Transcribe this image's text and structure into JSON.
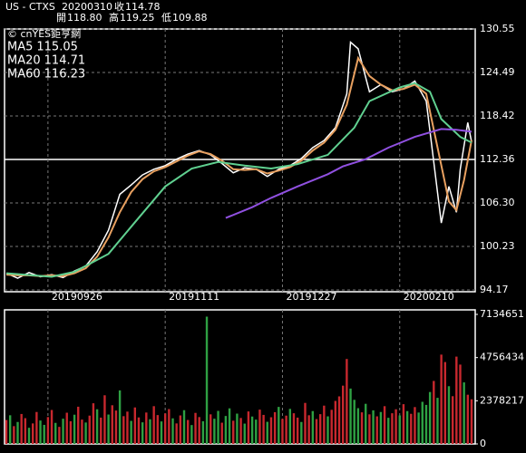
{
  "header": {
    "symbol": "US - CTXS",
    "date": "20200310",
    "close_label": "收",
    "close": "114.78",
    "open_label": "開",
    "open": "118.80",
    "high_label": "高",
    "high": "119.25",
    "low_label": "低",
    "low": "109.88",
    "source": "© cnYES鉅亨網"
  },
  "chart_data": [
    {
      "type": "line",
      "xlim": [
        0,
        123
      ],
      "xticks": [
        {
          "value": 11,
          "label": "20190926"
        },
        {
          "value": 42,
          "label": "20191111"
        },
        {
          "value": 73,
          "label": "20191227"
        },
        {
          "value": 104,
          "label": "20200210"
        }
      ],
      "ylim": [
        94.17,
        130.55
      ],
      "yticks": [
        94.17,
        {
          "value": 100.23,
          "label": "100.23"
        },
        {
          "value": 106.3,
          "label": "106.30"
        },
        112.36,
        118.42,
        124.49,
        130.55
      ],
      "highlight_tick": 3,
      "grid": true,
      "series": [
        {
          "color": "#ffffff",
          "x": [
            0,
            3,
            6,
            9,
            12,
            15,
            18,
            21,
            24,
            27,
            30,
            33,
            36,
            39,
            42,
            45,
            48,
            51,
            54,
            57,
            60,
            63,
            66,
            69,
            72,
            75,
            78,
            81,
            84,
            87,
            90,
            91,
            93,
            96,
            99,
            102,
            105,
            108,
            111,
            113,
            115,
            117,
            119,
            120,
            122,
            123
          ],
          "values": [
            96.5,
            95.8,
            96.6,
            96.0,
            96.3,
            95.9,
            96.8,
            97.5,
            99.5,
            102.5,
            107.5,
            108.8,
            110.2,
            111.0,
            111.5,
            112.4,
            113.1,
            113.6,
            113.0,
            111.8,
            110.5,
            111.2,
            111.0,
            110.0,
            111.0,
            111.5,
            112.5,
            114.0,
            115.0,
            116.8,
            121.5,
            128.7,
            127.8,
            121.8,
            122.8,
            121.8,
            122.2,
            123.3,
            120.5,
            112.0,
            103.5,
            108.6,
            105.0,
            111.0,
            117.5,
            114.78
          ]
        },
        {
          "name": "MA5",
          "color": "#e8a060",
          "x": [
            0,
            3,
            6,
            9,
            12,
            15,
            18,
            21,
            24,
            27,
            30,
            33,
            36,
            39,
            42,
            45,
            48,
            51,
            54,
            57,
            60,
            63,
            66,
            69,
            72,
            75,
            78,
            81,
            84,
            87,
            90,
            93,
            96,
            99,
            102,
            105,
            108,
            111,
            114,
            117,
            119,
            121,
            123
          ],
          "values": [
            96.3,
            96.2,
            96.2,
            96.1,
            96.2,
            96.1,
            96.5,
            97.2,
            98.8,
            101.5,
            105.0,
            107.8,
            109.6,
            110.7,
            111.3,
            112.1,
            112.9,
            113.5,
            113.1,
            112.2,
            111.0,
            110.9,
            111.0,
            110.4,
            110.8,
            111.3,
            112.2,
            113.6,
            114.7,
            116.5,
            120.0,
            126.5,
            124.0,
            122.8,
            122.0,
            122.2,
            122.8,
            121.5,
            114.0,
            106.5,
            105.3,
            109.5,
            115.05
          ]
        },
        {
          "name": "MA20",
          "color": "#60d090",
          "x": [
            0,
            12,
            18,
            27,
            34,
            42,
            49,
            56,
            63,
            70,
            77,
            85,
            92,
            96,
            104,
            108,
            112,
            115,
            120,
            123
          ],
          "values": [
            96.5,
            96.0,
            96.7,
            99.2,
            103.6,
            108.6,
            111.1,
            112.0,
            111.5,
            111.1,
            111.7,
            113.0,
            116.8,
            120.5,
            122.4,
            123.0,
            121.8,
            118.0,
            115.5,
            114.71
          ]
        },
        {
          "name": "MA60",
          "color": "#9050e0",
          "x": [
            58,
            65,
            70,
            77,
            85,
            89,
            95,
            101,
            108,
            115,
            119,
            123
          ],
          "values": [
            104.2,
            105.7,
            107.0,
            108.6,
            110.3,
            111.4,
            112.4,
            114.0,
            115.5,
            116.6,
            116.5,
            116.23
          ]
        }
      ]
    },
    {
      "type": "bar",
      "xlim": [
        0,
        123
      ],
      "ylim": [
        0,
        7134651
      ],
      "yticks": [
        0,
        2378217,
        4756434,
        7134651
      ],
      "values": [
        1320000,
        1580000,
        980000,
        1210000,
        1650000,
        1420000,
        890000,
        1130000,
        1760000,
        1290000,
        1050000,
        1480000,
        1870000,
        1160000,
        940000,
        1390000,
        1720000,
        1250000,
        1610000,
        2050000,
        1340000,
        1180000,
        1560000,
        2240000,
        1910000,
        1450000,
        2680000,
        1620000,
        2130000,
        1840000,
        2950000,
        1530000,
        1780000,
        1270000,
        2010000,
        1460000,
        1190000,
        1730000,
        1360000,
        2080000,
        1590000,
        1240000,
        1680000,
        1920000,
        1410000,
        1130000,
        1570000,
        1860000,
        1320000,
        1040000,
        1710000,
        1480000,
        1250000,
        7010000,
        1630000,
        1390000,
        1820000,
        1170000,
        1540000,
        1960000,
        1280000,
        1670000,
        1430000,
        1120000,
        1790000,
        1510000,
        1340000,
        1890000,
        1600000,
        1220000,
        1470000,
        1750000,
        2040000,
        1380000,
        1560000,
        1930000,
        1690000,
        1450000,
        1210000,
        2260000,
        1580000,
        1810000,
        1370000,
        1640000,
        2110000,
        1520000,
        1880000,
        2370000,
        2620000,
        3210000,
        4680000,
        3050000,
        2430000,
        1970000,
        1740000,
        2210000,
        1630000,
        1850000,
        1520000,
        1760000,
        2080000,
        1440000,
        1690000,
        1910000,
        1570000,
        2190000,
        1810000,
        1660000,
        2030000,
        1730000,
        2320000,
        2150000,
        2860000,
        3470000,
        2540000,
        4920000,
        4510000,
        3180000,
        2630000,
        4810000,
        4370000,
        3390000,
        2710000,
        2460000
      ],
      "colors": [
        "#c8282e",
        "#2ea043",
        "#c8282e",
        "#2ea043",
        "#c8282e",
        "#c8282e",
        "#2ea043",
        "#c8282e",
        "#c8282e",
        "#2ea043",
        "#2ea043",
        "#c8282e",
        "#c8282e",
        "#2ea043",
        "#c8282e",
        "#2ea043",
        "#c8282e",
        "#c8282e",
        "#2ea043",
        "#c8282e",
        "#c8282e",
        "#2ea043",
        "#c8282e",
        "#c8282e",
        "#2ea043",
        "#c8282e",
        "#c8282e",
        "#2ea043",
        "#c8282e",
        "#c8282e",
        "#2ea043",
        "#c8282e",
        "#c8282e",
        "#2ea043",
        "#c8282e",
        "#c8282e",
        "#2ea043",
        "#c8282e",
        "#2ea043",
        "#c8282e",
        "#c8282e",
        "#2ea043",
        "#c8282e",
        "#c8282e",
        "#2ea043",
        "#c8282e",
        "#c8282e",
        "#2ea043",
        "#c8282e",
        "#2ea043",
        "#c8282e",
        "#c8282e",
        "#2ea043",
        "#2ea043",
        "#c8282e",
        "#2ea043",
        "#2ea043",
        "#c8282e",
        "#2ea043",
        "#2ea043",
        "#c8282e",
        "#2ea043",
        "#c8282e",
        "#2ea043",
        "#c8282e",
        "#2ea043",
        "#2ea043",
        "#c8282e",
        "#c8282e",
        "#2ea043",
        "#c8282e",
        "#c8282e",
        "#2ea043",
        "#c8282e",
        "#c8282e",
        "#2ea043",
        "#c8282e",
        "#c8282e",
        "#2ea043",
        "#c8282e",
        "#c8282e",
        "#2ea043",
        "#c8282e",
        "#c8282e",
        "#c8282e",
        "#2ea043",
        "#c8282e",
        "#c8282e",
        "#c8282e",
        "#c8282e",
        "#c8282e",
        "#2ea043",
        "#2ea043",
        "#2ea043",
        "#c8282e",
        "#2ea043",
        "#c8282e",
        "#2ea043",
        "#c8282e",
        "#2ea043",
        "#c8282e",
        "#2ea043",
        "#c8282e",
        "#c8282e",
        "#2ea043",
        "#c8282e",
        "#2ea043",
        "#c8282e",
        "#c8282e",
        "#2ea043",
        "#2ea043",
        "#2ea043",
        "#2ea043",
        "#c8282e",
        "#2ea043",
        "#c8282e",
        "#c8282e",
        "#2ea043",
        "#c8282e",
        "#c8282e",
        "#c8282e",
        "#2ea043",
        "#c8282e",
        "#c8282e"
      ]
    }
  ]
}
